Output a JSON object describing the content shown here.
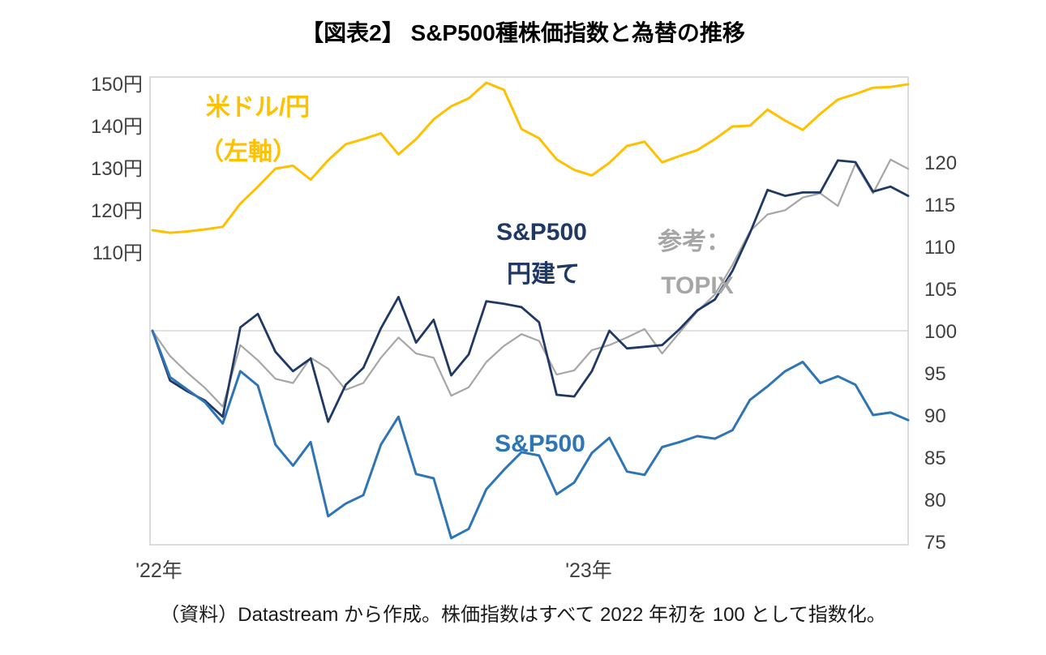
{
  "title": "【図表2】 S&P500種株価指数と為替の推移",
  "source_note": "（資料）Datastream から作成。株価指数はすべて 2022 年初を 100 として指数化。",
  "chart_data": {
    "type": "line",
    "title": "【図表2】 S&P500種株価指数と為替の推移",
    "x_axis": {
      "labels": [
        "'22年",
        "'23年"
      ],
      "start": "2022-01",
      "end": "2023-10"
    },
    "left_axis": {
      "unit": "円",
      "ticks": [
        "150円",
        "140円",
        "130円",
        "120円",
        "110円"
      ],
      "tick_values": [
        150,
        140,
        130,
        120,
        110
      ]
    },
    "right_axis": {
      "ticks": [
        "120",
        "115",
        "110",
        "105",
        "100",
        "95",
        "90",
        "85",
        "80",
        "75"
      ],
      "tick_values": [
        120,
        115,
        110,
        105,
        100,
        95,
        90,
        85,
        80,
        75
      ]
    },
    "annotations": {
      "usd_jpy_line1": "米ドル/円",
      "usd_jpy_line2": "（左軸）",
      "sp500_yen_line1": "S&P500",
      "sp500_yen_line2": "円建て",
      "topix_line1": "参考：",
      "topix_line2": "TOPIX",
      "sp500": "S&P500"
    },
    "grid": "horizontal line at right-axis 100 only",
    "series": [
      {
        "name": "米ドル/円（左軸）",
        "axis": "left",
        "color": "#FFC000",
        "values": [
          115.2,
          114.6,
          114.9,
          115.4,
          116.0,
          121.5,
          125.5,
          129.8,
          130.5,
          127.2,
          131.8,
          135.6,
          136.8,
          138.2,
          133.2,
          136.8,
          141.5,
          144.6,
          146.5,
          150.2,
          148.5,
          139.2,
          137.0,
          132.0,
          129.5,
          128.2,
          131.2,
          135.2,
          136.2,
          131.3,
          132.8,
          134.2,
          136.8,
          139.8,
          140.0,
          143.8,
          141.2,
          139.0,
          142.8,
          146.2,
          147.5,
          149.0,
          149.2,
          149.8
        ]
      },
      {
        "name": "TOPIX（参考）",
        "axis": "right",
        "color": "#A6A6A6",
        "values": [
          100.0,
          97.0,
          95.0,
          93.2,
          91.0,
          98.3,
          96.5,
          94.3,
          93.8,
          96.8,
          95.5,
          93.0,
          93.8,
          96.8,
          99.2,
          97.3,
          96.8,
          92.3,
          93.3,
          96.3,
          98.2,
          99.6,
          98.8,
          94.8,
          95.3,
          97.7,
          98.3,
          99.2,
          100.2,
          97.3,
          99.8,
          102.3,
          104.3,
          107.8,
          111.8,
          113.8,
          114.3,
          115.8,
          116.3,
          114.8,
          119.8,
          116.3,
          120.3,
          119.2
        ]
      },
      {
        "name": "S&P500 円建て",
        "axis": "right",
        "color": "#1F3864",
        "values": [
          100.0,
          94.1,
          92.8,
          91.7,
          89.8,
          100.4,
          102.0,
          97.5,
          95.2,
          96.7,
          89.2,
          93.6,
          95.6,
          100.3,
          104.0,
          98.6,
          101.3,
          94.7,
          97.2,
          103.5,
          103.2,
          102.8,
          101.0,
          92.4,
          92.2,
          95.2,
          100.0,
          97.9,
          98.1,
          98.3,
          100.2,
          102.4,
          103.7,
          107.1,
          111.6,
          116.7,
          116.0,
          116.4,
          116.4,
          120.2,
          120.0,
          116.5,
          117.1,
          116.0
        ]
      },
      {
        "name": "S&P500",
        "axis": "right",
        "color": "#2E75B6",
        "values": [
          100.0,
          94.5,
          93.0,
          91.5,
          89.0,
          95.2,
          93.5,
          86.5,
          84.0,
          86.8,
          78.0,
          79.5,
          80.5,
          86.5,
          89.8,
          83.0,
          82.5,
          75.4,
          76.5,
          81.2,
          83.5,
          85.6,
          85.2,
          80.6,
          82.0,
          85.5,
          87.3,
          83.3,
          82.9,
          86.2,
          86.8,
          87.5,
          87.2,
          88.2,
          91.8,
          93.4,
          95.2,
          96.3,
          93.8,
          94.6,
          93.6,
          90.0,
          90.3,
          89.4
        ]
      }
    ],
    "notes": "株価指数はすべて2022年初=100として指数化。左軸は米ドル/円、右軸は指数値。"
  }
}
